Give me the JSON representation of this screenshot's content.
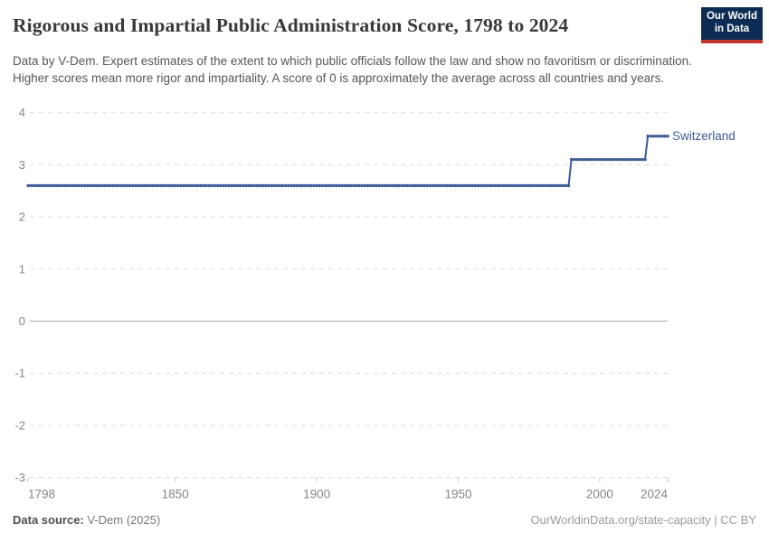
{
  "header": {
    "title": "Rigorous and Impartial Public Administration Score, 1798 to 2024",
    "subtitle": "Data by V-Dem. Expert estimates of the extent to which public officials follow the law and show no favoritism or discrimination. Higher scores mean more rigor and impartiality. A score of 0 is approximately the average across all countries and years.",
    "logo": {
      "line1": "Our World",
      "line2": "in Data",
      "bg_color": "#0d2c54",
      "accent_color": "#c4352c"
    }
  },
  "chart_data": {
    "type": "line",
    "title": "Rigorous and Impartial Public Administration Score, 1798 to 2024",
    "xlabel": "",
    "ylabel": "",
    "xlim": [
      1798,
      2024
    ],
    "ylim": [
      -3,
      4
    ],
    "x_ticks": [
      1798,
      1850,
      1900,
      1950,
      2000,
      2024
    ],
    "y_ticks": [
      4,
      3,
      2,
      1,
      0,
      -1,
      -2,
      -3
    ],
    "grid": "horizontal dashed; solid line at 0",
    "legend_position": "label at end of line",
    "series": [
      {
        "name": "Switzerland",
        "color": "#3d5b96",
        "style": "stepped line with year dot markers",
        "segments": [
          {
            "start_year": 1798,
            "end_year": 1989,
            "value": 2.6
          },
          {
            "start_year": 1990,
            "end_year": 2016,
            "value": 3.1
          },
          {
            "start_year": 2017,
            "end_year": 2024,
            "value": 3.55
          }
        ]
      }
    ],
    "colors": {
      "gridline": "#dedede",
      "zero_line": "#b0b0b0",
      "tick_label": "#868686",
      "axis_tick": "#c9c9c9"
    }
  },
  "footer": {
    "source_label": "Data source:",
    "source_value": " V-Dem (2025)",
    "attribution": "OurWorldinData.org/state-capacity | CC BY"
  }
}
